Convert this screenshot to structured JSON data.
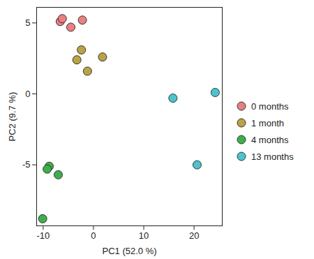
{
  "chart_data": {
    "type": "scatter",
    "xlabel": "PC1 (52.0 %)",
    "ylabel": "PC2 (9.7 %)",
    "xlim": [
      -11.3,
      25.6
    ],
    "xticks": [
      -10,
      0,
      10,
      20
    ],
    "ylim": [
      -9.3,
      6.1
    ],
    "yticks": [
      -5,
      0,
      5
    ],
    "marker": "circle",
    "legend": "right",
    "series": [
      {
        "name": "0 months",
        "color": "#ea7f7f",
        "x": [
          -6.6,
          -6.2,
          -4.5,
          -2.2
        ],
        "values": [
          5.1,
          5.3,
          4.7,
          5.2
        ]
      },
      {
        "name": "1 month",
        "color": "#b9a343",
        "x": [
          -2.4,
          -3.3,
          -1.2,
          1.8
        ],
        "values": [
          3.1,
          2.4,
          1.6,
          2.6
        ]
      },
      {
        "name": "4 months",
        "color": "#3daf4a",
        "x": [
          -8.8,
          -9.2,
          -7.0,
          -10.1
        ],
        "values": [
          -5.1,
          -5.3,
          -5.7,
          -8.8
        ]
      },
      {
        "name": "13 months",
        "color": "#4cc3cf",
        "x": [
          15.8,
          24.2,
          20.6
        ],
        "values": [
          -0.3,
          0.1,
          -5.0
        ]
      }
    ]
  }
}
